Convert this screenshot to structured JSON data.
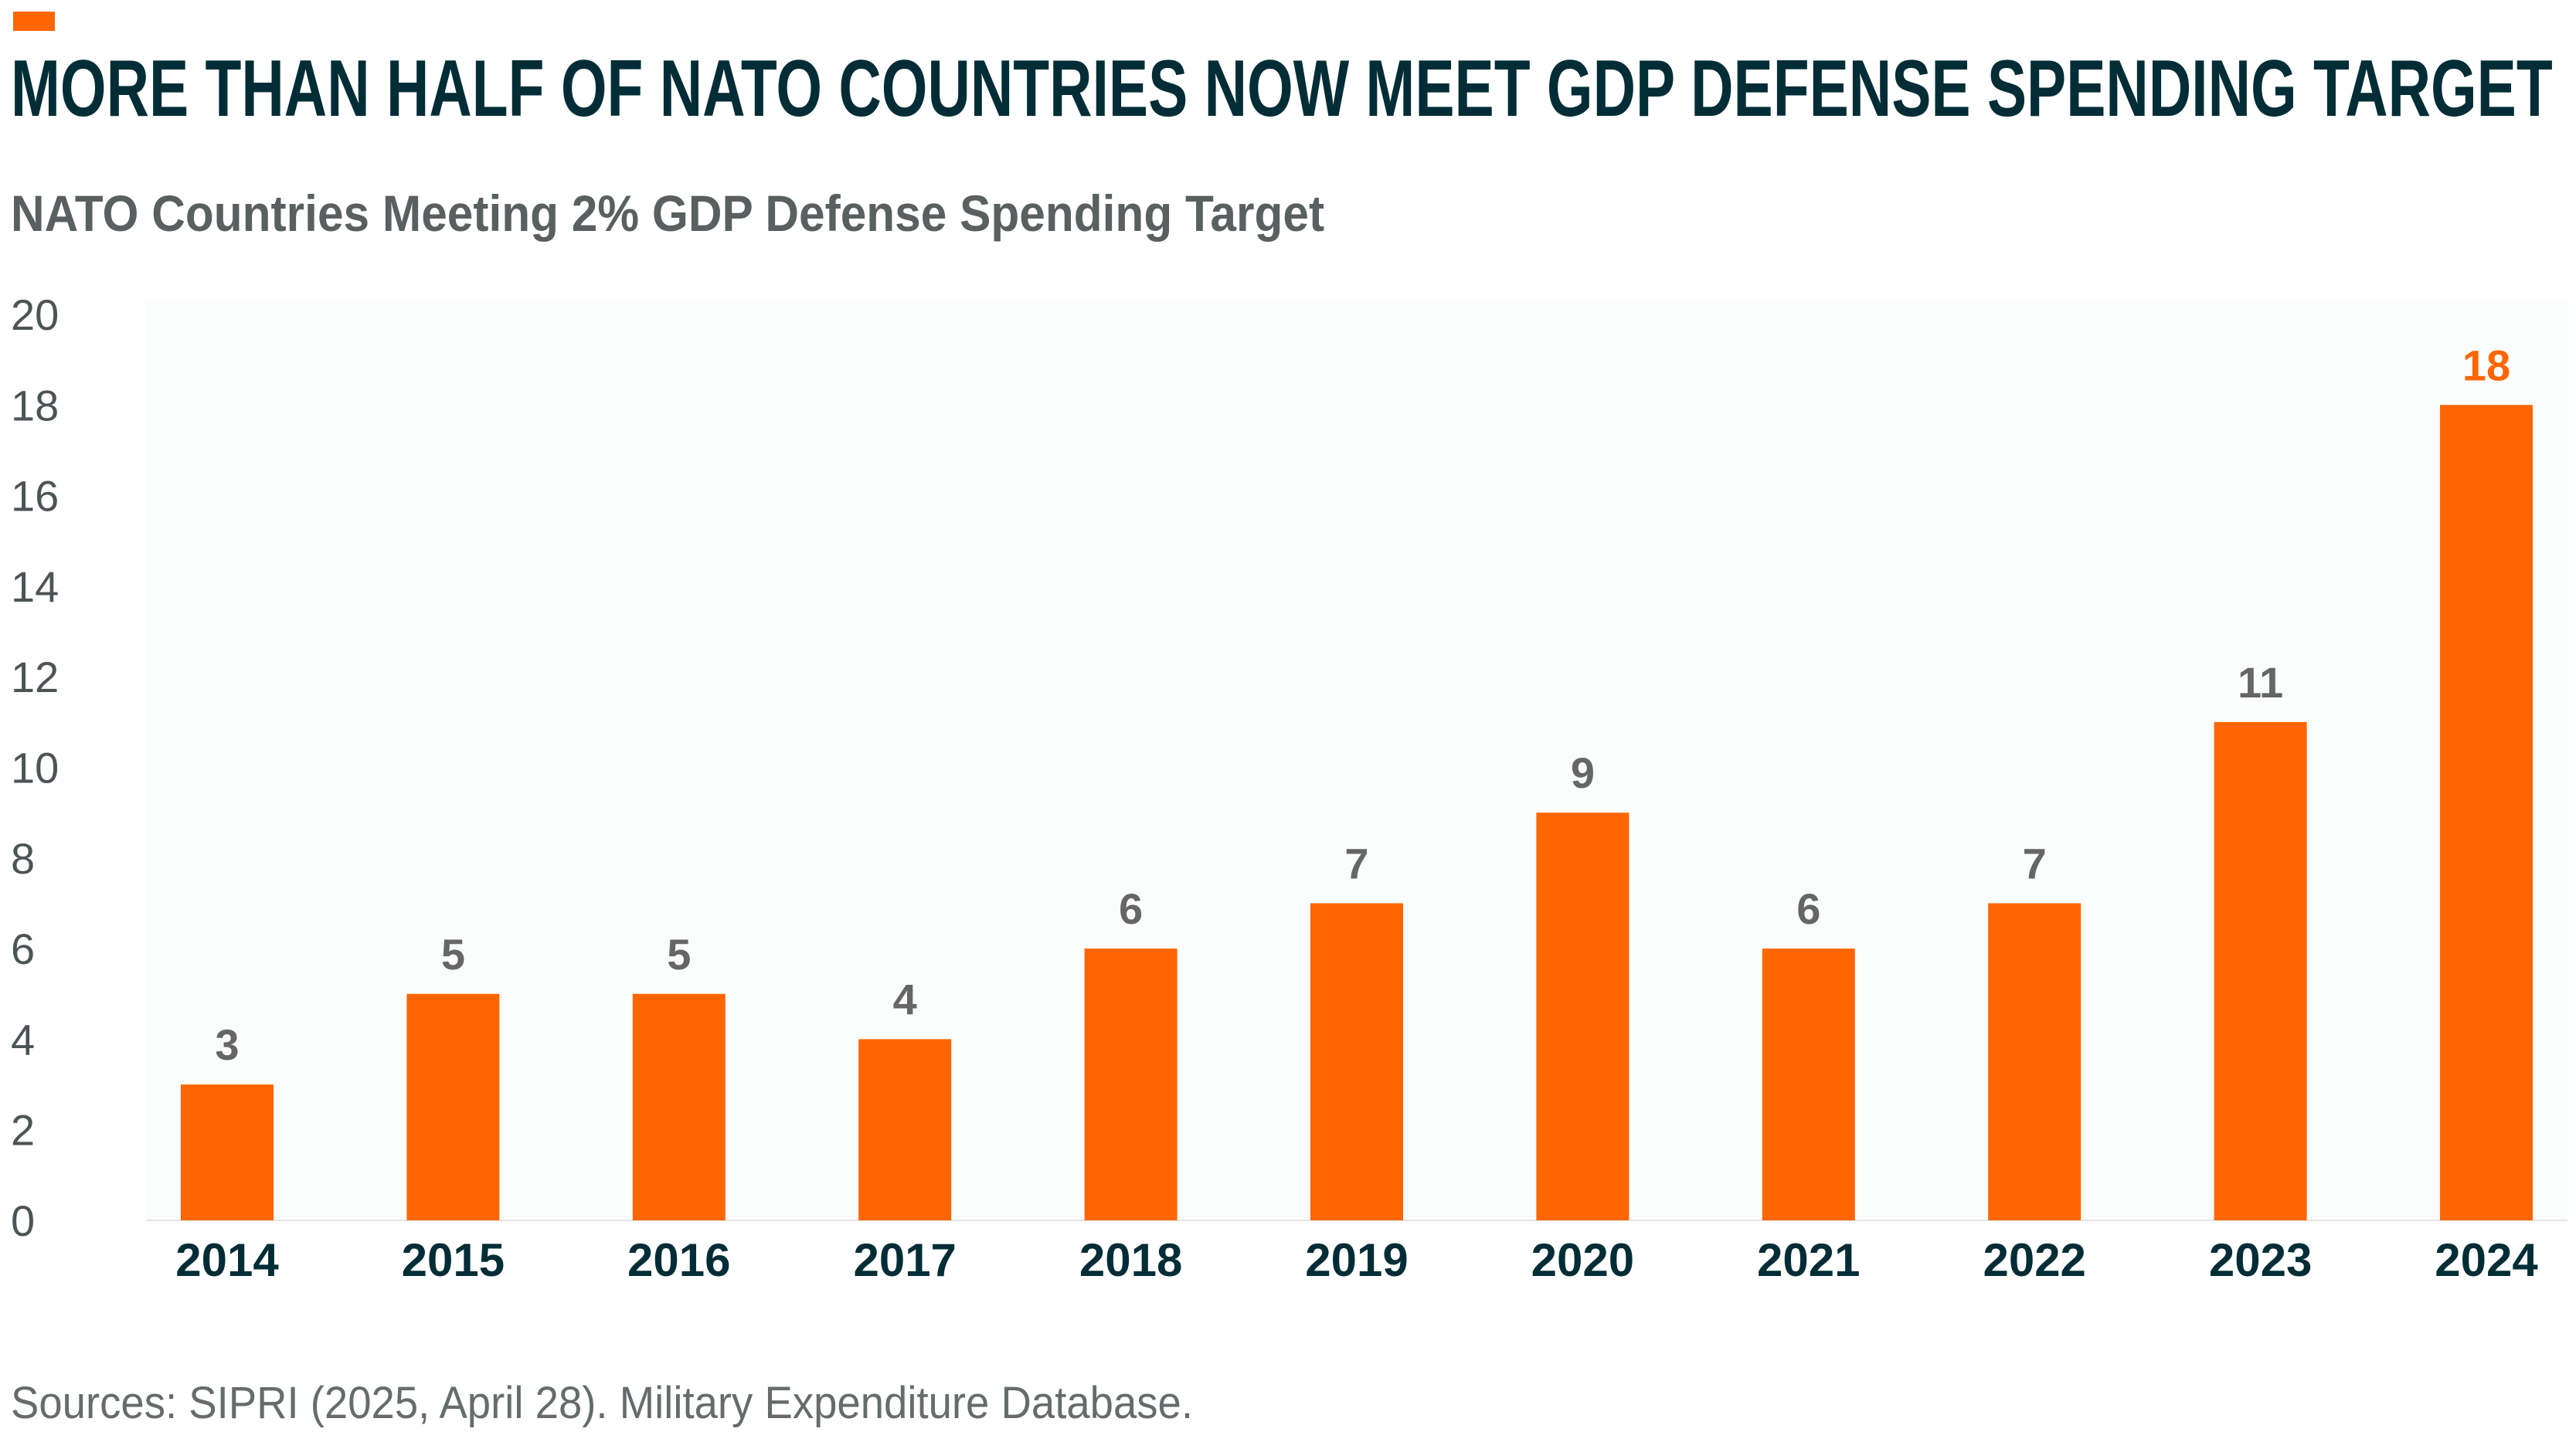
{
  "title": "MORE THAN HALF OF NATO COUNTRIES NOW MEET GDP DEFENSE SPENDING TARGET",
  "source": "Sources: SIPRI (2025, April 28). Military Expenditure Database.",
  "colors": {
    "bar": "#ff6600",
    "highlight_label": "#ff6600",
    "value_label": "#666666",
    "x_label": "#022d36",
    "title": "#022d36",
    "plot_background": "#fbfcfc"
  },
  "chart_data": {
    "type": "bar",
    "title": "NATO Countries Meeting 2% GDP Defense Spending Target",
    "xlabel": "",
    "ylabel": "",
    "categories": [
      "2014",
      "2015",
      "2016",
      "2017",
      "2018",
      "2019",
      "2020",
      "2021",
      "2022",
      "2023",
      "2024"
    ],
    "values": [
      3,
      5,
      5,
      4,
      6,
      7,
      9,
      6,
      7,
      11,
      18
    ],
    "ylim": [
      0,
      20
    ],
    "yticks": [
      "0",
      "2",
      "4",
      "6",
      "8",
      "10",
      "12",
      "14",
      "16",
      "18",
      "20"
    ],
    "grid": false,
    "data_labels": true,
    "highlight_category": "2024"
  }
}
